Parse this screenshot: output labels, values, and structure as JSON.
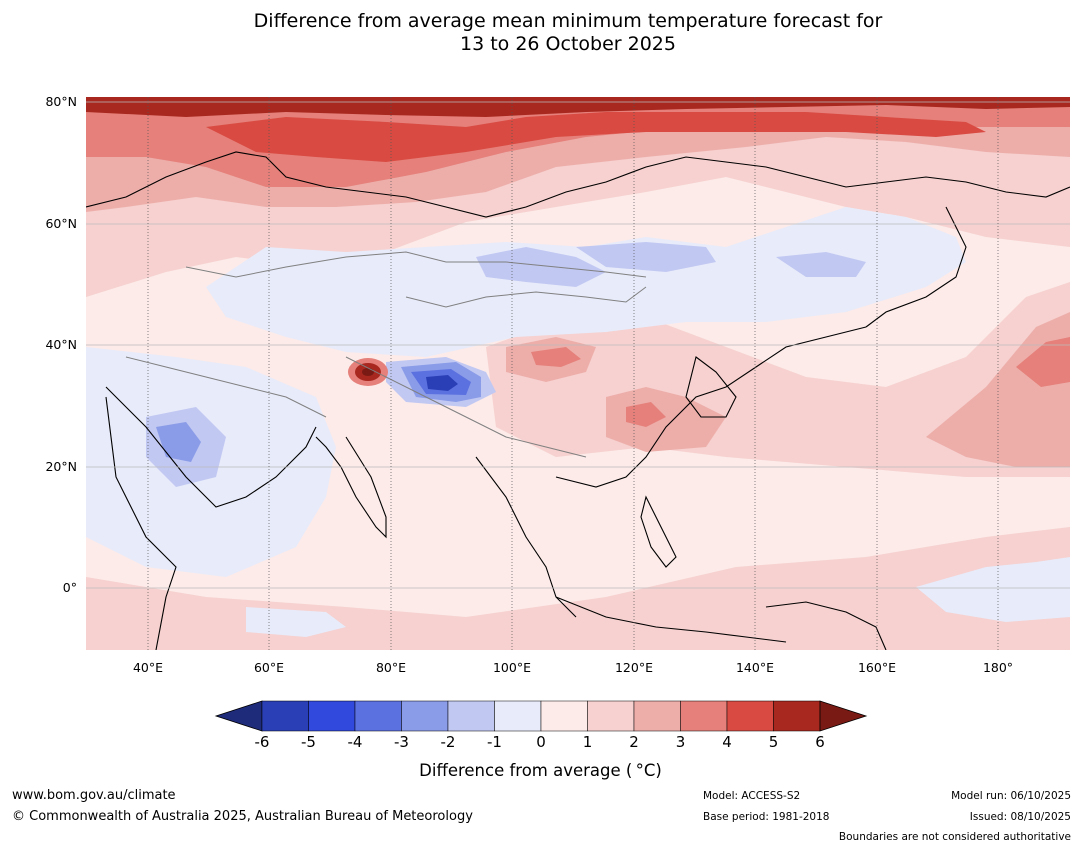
{
  "title": {
    "line1": "Difference from average mean minimum temperature forecast for",
    "line2": "13 to 26 October 2025"
  },
  "map": {
    "lat_labels": [
      "80°N",
      "60°N",
      "40°N",
      "20°N",
      "0°"
    ],
    "lon_labels": [
      "40°E",
      "60°E",
      "80°E",
      "100°E",
      "120°E",
      "140°E",
      "160°E",
      "180°"
    ],
    "colors": {
      "land_default": "#fcebe9",
      "ocean_default": "#fcebe9",
      "border": "#808080",
      "coast": "#000000"
    }
  },
  "colorbar": {
    "ticks": [
      "-6",
      "-5",
      "-4",
      "-3",
      "-2",
      "-1",
      "0",
      "1",
      "2",
      "3",
      "4",
      "5",
      "6"
    ],
    "colors": [
      "#1e2b7a",
      "#2a3fb5",
      "#3149dc",
      "#5c71e0",
      "#8a9be8",
      "#c1c8f2",
      "#e8ebfa",
      "#fcebe9",
      "#f6d1cf",
      "#edaeaa",
      "#e5807a",
      "#d84a42",
      "#a8281f",
      "#7a1a14"
    ],
    "label": "Difference from average ( °C)"
  },
  "footer": {
    "website": "www.bom.gov.au/climate",
    "copyright": "© Commonwealth of Australia 2025, Australian Bureau of Meteorology",
    "model": "Model: ACCESS-S2",
    "base_period": "Base period: 1981-2018",
    "model_run": "Model run: 06/10/2025",
    "issued": "Issued: 08/10/2025",
    "disclaimer": "Boundaries are not considered authoritative"
  }
}
